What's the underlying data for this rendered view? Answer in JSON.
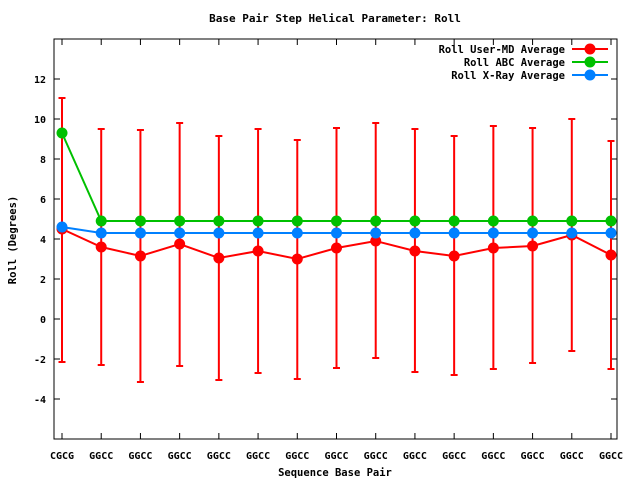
{
  "chart_data": {
    "type": "line",
    "title": "Base Pair Step Helical Parameter: Roll",
    "xlabel": "Sequence Base Pair",
    "ylabel": "Roll (Degrees)",
    "categories": [
      "CGCG",
      "GGCC",
      "GGCC",
      "GGCC",
      "GGCC",
      "GGCC",
      "GGCC",
      "GGCC",
      "GGCC",
      "GGCC",
      "GGCC",
      "GGCC",
      "GGCC",
      "GGCC",
      "GGCC"
    ],
    "ylim": [
      -6,
      14
    ],
    "yticks": [
      -4,
      -2,
      0,
      2,
      4,
      6,
      8,
      10,
      12
    ],
    "grid": false,
    "legend_position": "top-right",
    "series": [
      {
        "name": "Roll User-MD Average",
        "color": "#ff0000",
        "values": [
          4.5,
          3.6,
          3.15,
          3.75,
          3.05,
          3.4,
          3.0,
          3.55,
          3.9,
          3.4,
          3.15,
          3.55,
          3.65,
          4.2,
          3.2
        ],
        "error_low": [
          -2.15,
          -2.3,
          -3.15,
          -2.35,
          -3.05,
          -2.7,
          -3.0,
          -2.45,
          -1.95,
          -2.65,
          -2.8,
          -2.5,
          -2.2,
          -1.6,
          -2.5
        ],
        "error_high": [
          11.05,
          9.5,
          9.45,
          9.8,
          9.15,
          9.5,
          8.95,
          9.55,
          9.8,
          9.5,
          9.15,
          9.65,
          9.55,
          10.0,
          8.9
        ]
      },
      {
        "name": "Roll ABC Average",
        "color": "#00c000",
        "values": [
          9.3,
          4.9,
          4.9,
          4.9,
          4.9,
          4.9,
          4.9,
          4.9,
          4.9,
          4.9,
          4.9,
          4.9,
          4.9,
          4.9,
          4.9
        ]
      },
      {
        "name": "Roll X-Ray Average",
        "color": "#0080ff",
        "values": [
          4.6,
          4.3,
          4.3,
          4.3,
          4.3,
          4.3,
          4.3,
          4.3,
          4.3,
          4.3,
          4.3,
          4.3,
          4.3,
          4.3,
          4.3
        ]
      }
    ]
  }
}
